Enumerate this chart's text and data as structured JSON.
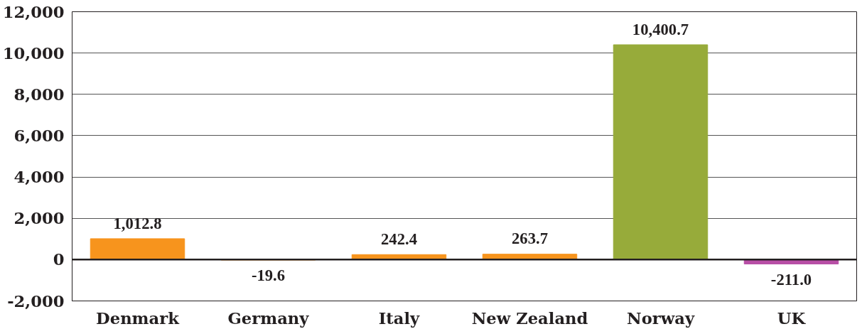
{
  "chart_data": {
    "type": "bar",
    "categories": [
      "Denmark",
      "Germany",
      "Italy",
      "New Zealand",
      "Norway",
      "UK"
    ],
    "values": [
      1012.8,
      -19.6,
      242.4,
      263.7,
      10400.7,
      -211.0
    ],
    "colors": [
      "#f7941d",
      "#f7941d",
      "#f7941d",
      "#f7941d",
      "#97ab3a",
      "#b84fa6"
    ],
    "value_labels": [
      "1,012.8",
      "-19.6",
      "242.4",
      "263.7",
      "10,400.7",
      "-211.0"
    ],
    "ylim": [
      -2000,
      12000
    ],
    "yticks": [
      {
        "value": -2000,
        "label": "-2,000"
      },
      0,
      {
        "value": 2000,
        "label": "2,000"
      },
      {
        "value": 4000,
        "label": "4,000"
      },
      {
        "value": 6000,
        "label": "6,000"
      },
      {
        "value": 8000,
        "label": "8,000"
      },
      {
        "value": 10000,
        "label": "10,000"
      },
      {
        "value": 12000,
        "label": "12,000"
      }
    ],
    "grid": "y",
    "ref_lines": [
      {
        "axis": "y",
        "value": 0,
        "label": null,
        "color": "#231f20"
      }
    ]
  }
}
